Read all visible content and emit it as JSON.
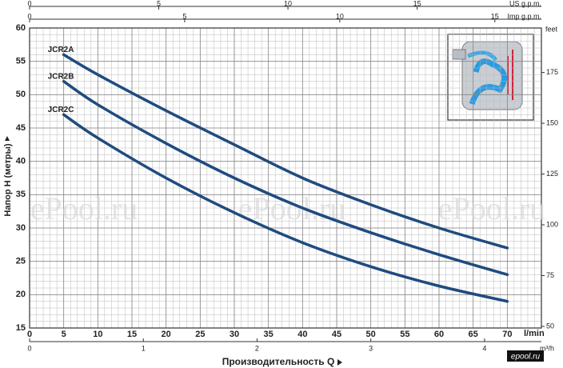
{
  "chart_data": {
    "type": "line",
    "ylabel": "Напор H (метры)",
    "xlabel": "Производительность Q",
    "xunit": "l/min",
    "x": [
      5,
      10,
      20,
      30,
      40,
      50,
      60,
      70
    ],
    "series": [
      {
        "name": "JCR2A",
        "color": "#1f4b7f",
        "values": [
          56,
          53,
          47.6,
          42.5,
          37.5,
          33.5,
          30,
          27
        ]
      },
      {
        "name": "JCR2B",
        "color": "#1f4b7f",
        "values": [
          52,
          48.5,
          42.7,
          37.5,
          33,
          29.3,
          26,
          23
        ]
      },
      {
        "name": "JCR2C",
        "color": "#1f4b7f",
        "values": [
          47,
          43.5,
          37.5,
          32.3,
          27.8,
          24.2,
          21.3,
          19
        ]
      }
    ],
    "xlim": [
      0,
      75
    ],
    "xticks": [
      0,
      5,
      10,
      15,
      20,
      25,
      30,
      35,
      40,
      45,
      50,
      55,
      60,
      65,
      70
    ],
    "ylim": [
      15,
      60
    ],
    "yticks": [
      15,
      20,
      25,
      30,
      35,
      40,
      45,
      50,
      55,
      60
    ],
    "y2label": "feet",
    "y2lim": [
      49.2,
      196.9
    ],
    "y2ticks": [
      50,
      75,
      100,
      125,
      150,
      175
    ],
    "extra_x_axes": [
      {
        "label": "US g.p.m.",
        "lim": [
          0,
          19.81
        ],
        "ticks": [
          0,
          5,
          10,
          15
        ]
      },
      {
        "label": "Imp g.p.m.",
        "lim": [
          0,
          16.5
        ],
        "ticks": [
          0,
          5,
          10,
          15
        ]
      },
      {
        "label": "m³/h",
        "lim": [
          0,
          4.5
        ],
        "ticks": [
          0,
          1,
          2,
          3,
          4
        ]
      }
    ],
    "grid": true,
    "watermark": "ePool.ru",
    "logo": "epool.ru"
  }
}
